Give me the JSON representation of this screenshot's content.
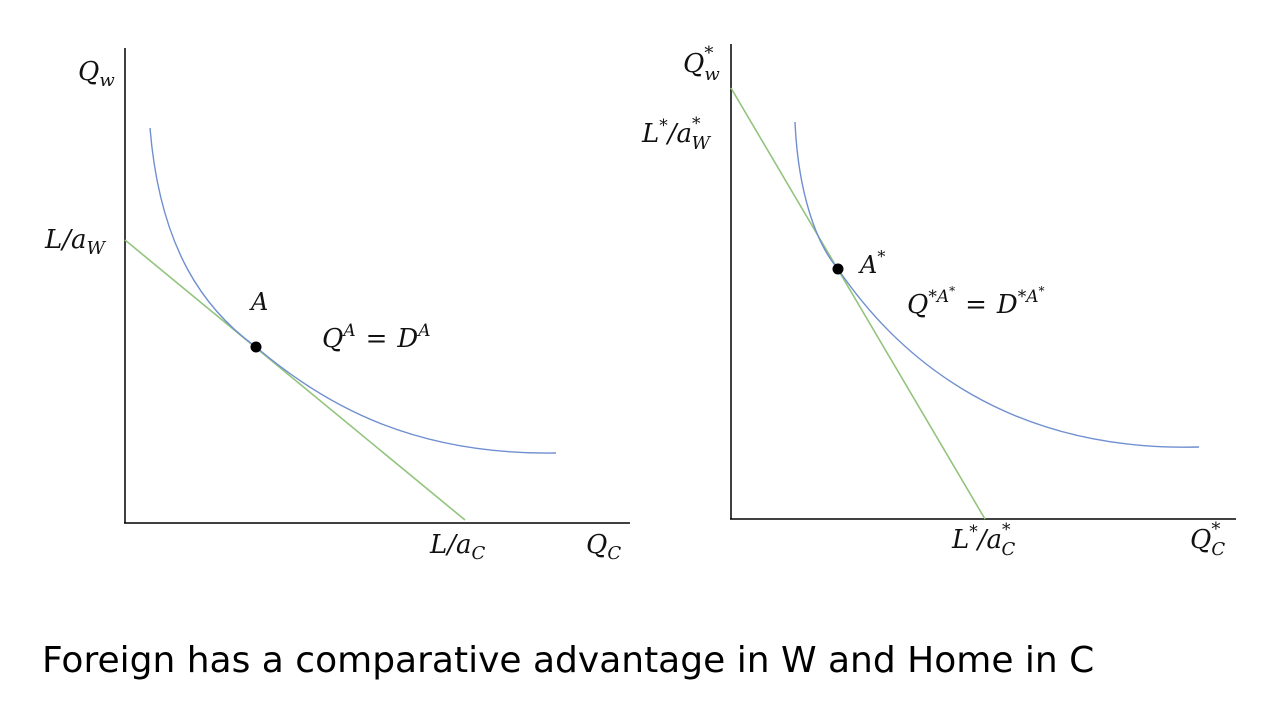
{
  "colors": {
    "axis": "#000000",
    "curve": "#6f8fd0",
    "line": "#93c47d",
    "point": "#000000",
    "text": "#111111"
  },
  "home": {
    "y_axis": "Q",
    "y_axis_sub": "w",
    "x_axis": "Q",
    "x_axis_sub": "C",
    "y_intercept": "L/a",
    "y_intercept_sub": "W",
    "x_intercept": "L/a",
    "x_intercept_sub": "C",
    "point": "A",
    "eq_q": "Q",
    "eq_q_sup": "A",
    "eq_equals": "=",
    "eq_d": "D",
    "eq_d_sup": "A"
  },
  "foreign": {
    "y_axis": "Q",
    "y_axis_sup": "*",
    "y_axis_sub": "w",
    "x_axis": "Q",
    "x_axis_sup": "*",
    "x_axis_sub": "C",
    "y_intercept": "L",
    "y_intercept_star": "*",
    "y_intercept_slash": "/a",
    "y_intercept_sup": "*",
    "y_intercept_sub": "W",
    "x_intercept": "L",
    "x_intercept_star": "*",
    "x_intercept_slash": "/a",
    "x_intercept_sup": "*",
    "x_intercept_sub": "C",
    "point": "A",
    "point_sup": "*",
    "eq_q": "Q",
    "eq_q_sup": "*A",
    "eq_q_supsup": "*",
    "eq_equals": "=",
    "eq_d": "D",
    "eq_d_sup": "*A",
    "eq_d_supsup": "*"
  },
  "caption": "Foreign has a comparative advantage in W and Home in C"
}
